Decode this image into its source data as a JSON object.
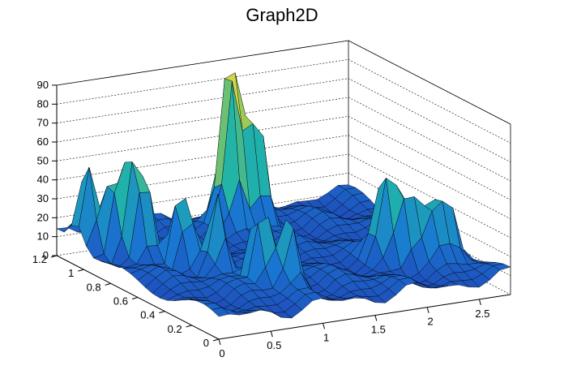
{
  "chart_data": {
    "type": "surface",
    "title": "Graph2D",
    "xlabel": "",
    "ylabel": "",
    "zlabel": "",
    "xlim": [
      0,
      2.8
    ],
    "ylim": [
      0,
      1.2
    ],
    "zlim": [
      0,
      90
    ],
    "x_ticks": [
      "0",
      "0.5",
      "1",
      "1.5",
      "2",
      "2.5"
    ],
    "y_ticks": [
      "0",
      "0.2",
      "0.4",
      "0.6",
      "0.8",
      "1",
      "1.2"
    ],
    "z_ticks": [
      "0",
      "10",
      "20",
      "30",
      "40",
      "50",
      "60",
      "70",
      "80",
      "90"
    ],
    "grid": true,
    "colormap": "viridis-like (blue to yellow)",
    "peaks": [
      {
        "x": 0.1,
        "y": 1.05,
        "z": 55
      },
      {
        "x": 0.25,
        "y": 0.95,
        "z": 60
      },
      {
        "x": 0.35,
        "y": 0.85,
        "z": 68
      },
      {
        "x": 0.55,
        "y": 0.7,
        "z": 58
      },
      {
        "x": 0.7,
        "y": 0.55,
        "z": 52
      },
      {
        "x": 0.85,
        "y": 0.35,
        "z": 62
      },
      {
        "x": 1.0,
        "y": 0.25,
        "z": 48
      },
      {
        "x": 1.4,
        "y": 1.0,
        "z": 82
      },
      {
        "x": 1.5,
        "y": 1.05,
        "z": 85
      },
      {
        "x": 1.65,
        "y": 1.0,
        "z": 80
      },
      {
        "x": 2.1,
        "y": 0.4,
        "z": 52
      },
      {
        "x": 2.25,
        "y": 0.35,
        "z": 54
      },
      {
        "x": 2.45,
        "y": 0.3,
        "z": 44
      },
      {
        "x": 2.6,
        "y": 0.3,
        "z": 42
      }
    ],
    "base_level": 10
  }
}
